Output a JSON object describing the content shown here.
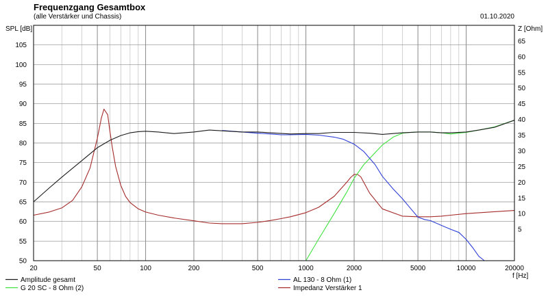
{
  "chart_data": {
    "type": "line",
    "title": "Frequenzgang Gesamtbox",
    "subtitle": "(alle Verstärker und Chassis)",
    "date": "01.10.2020",
    "y_left_label": "SPL [dB]",
    "y_right_label": "Z [Ohm]",
    "xlabel": "f [Hz]",
    "x_scale": "log",
    "xlim": [
      20,
      20000
    ],
    "ylim_left": [
      50,
      110
    ],
    "ylim_right": [
      -5,
      70
    ],
    "x_ticks": [
      20,
      50,
      100,
      200,
      500,
      1000,
      2000,
      5000,
      10000,
      20000
    ],
    "x_tick_labels": [
      "20",
      "50",
      "100",
      "200",
      "500",
      "1000",
      "2000",
      "5000",
      "10000",
      "20000"
    ],
    "y_left_ticks": [
      50,
      55,
      60,
      65,
      70,
      75,
      80,
      85,
      90,
      95,
      100,
      105
    ],
    "y_left_tick_labels": [
      "50",
      "55",
      "60",
      "65",
      "70",
      "75",
      "80",
      "85",
      "90",
      "95",
      "100",
      "105"
    ],
    "y_right_ticks": [
      5,
      10,
      15,
      20,
      25,
      30,
      35,
      40,
      45,
      50,
      55,
      60,
      65
    ],
    "y_right_tick_labels": [
      "5",
      "10",
      "15",
      "20",
      "25",
      "30",
      "35",
      "40",
      "45",
      "50",
      "55",
      "60",
      "65"
    ],
    "grid": true,
    "legend_position": "bottom",
    "series": [
      {
        "name": "Amplitude gesamt",
        "color": "#1a1a1a",
        "axis": "left",
        "x": [
          20,
          25,
          30,
          40,
          50,
          60,
          70,
          80,
          90,
          100,
          120,
          150,
          200,
          250,
          300,
          400,
          500,
          600,
          800,
          1000,
          1200,
          1500,
          2000,
          2500,
          3000,
          4000,
          5000,
          6000,
          7000,
          8000,
          10000,
          12000,
          15000,
          20000
        ],
        "y": [
          65,
          68.5,
          71.3,
          75.5,
          78.8,
          80.7,
          81.9,
          82.6,
          82.9,
          83,
          82.8,
          82.4,
          82.8,
          83.3,
          83.1,
          82.8,
          82.8,
          82.6,
          82.3,
          82.4,
          82.4,
          82.7,
          82.7,
          82.5,
          82.2,
          82.6,
          82.8,
          82.8,
          82.6,
          82.6,
          82.8,
          83.3,
          84,
          85.8
        ]
      },
      {
        "name": "AL 130 - 8 Ohm (1)",
        "color": "#2e3fd6",
        "axis": "left",
        "x": [
          300,
          400,
          500,
          600,
          700,
          800,
          1000,
          1200,
          1500,
          1700,
          2000,
          2300,
          2700,
          3000,
          3500,
          4000,
          4500,
          5000,
          5500,
          6000,
          7000,
          8000,
          9000,
          10000,
          11000,
          12000,
          13000,
          15000,
          20000
        ],
        "y": [
          83.2,
          82.8,
          82.5,
          82.3,
          82.1,
          82.1,
          82.2,
          82,
          81.5,
          81,
          79.7,
          77.8,
          74.5,
          71.5,
          68.3,
          65.8,
          63.3,
          61.1,
          60.5,
          60.2,
          59,
          58,
          57.2,
          55.4,
          53.3,
          51.1,
          50,
          50,
          50
        ]
      },
      {
        "name": "G 20 SC - 8 Ohm (2)",
        "color": "#3fe33f",
        "axis": "left",
        "x": [
          20,
          100,
          500,
          1000,
          1200,
          1500,
          1800,
          2000,
          2300,
          2700,
          3000,
          3500,
          4000,
          4500,
          5000,
          6000,
          7000,
          8000,
          10000,
          12000,
          15000,
          20000
        ],
        "y": [
          50,
          50,
          50,
          50,
          55.5,
          62,
          67.5,
          71,
          74.5,
          77.5,
          79.5,
          81.5,
          82.5,
          82.7,
          82.8,
          82.8,
          82.6,
          82.3,
          82.7,
          83.3,
          84.1,
          85.8
        ]
      },
      {
        "name": "Impedanz Verstärker 1",
        "color": "#a52a2a",
        "axis": "right",
        "x": [
          20,
          25,
          30,
          35,
          40,
          45,
          50,
          53,
          55,
          58,
          60,
          62,
          65,
          70,
          75,
          80,
          90,
          100,
          120,
          150,
          200,
          250,
          300,
          400,
          500,
          600,
          700,
          800,
          1000,
          1200,
          1500,
          1800,
          1900,
          2000,
          2100,
          2200,
          2500,
          3000,
          4000,
          5000,
          6000,
          7000,
          8000,
          10000,
          15000,
          20000
        ],
        "y": [
          9.5,
          10.5,
          11.8,
          14.2,
          18.5,
          24.5,
          34,
          40.5,
          43.3,
          41.5,
          36,
          31,
          25,
          19,
          15.5,
          13.5,
          11.5,
          10.5,
          9.5,
          8.6,
          7.7,
          7,
          6.8,
          6.8,
          7.2,
          7.8,
          8.4,
          9,
          10.3,
          12,
          15.5,
          20,
          21.5,
          22.5,
          22.5,
          21.7,
          16.5,
          11.5,
          9.2,
          9,
          9,
          9.2,
          9.5,
          10,
          10.6,
          11
        ]
      }
    ]
  }
}
